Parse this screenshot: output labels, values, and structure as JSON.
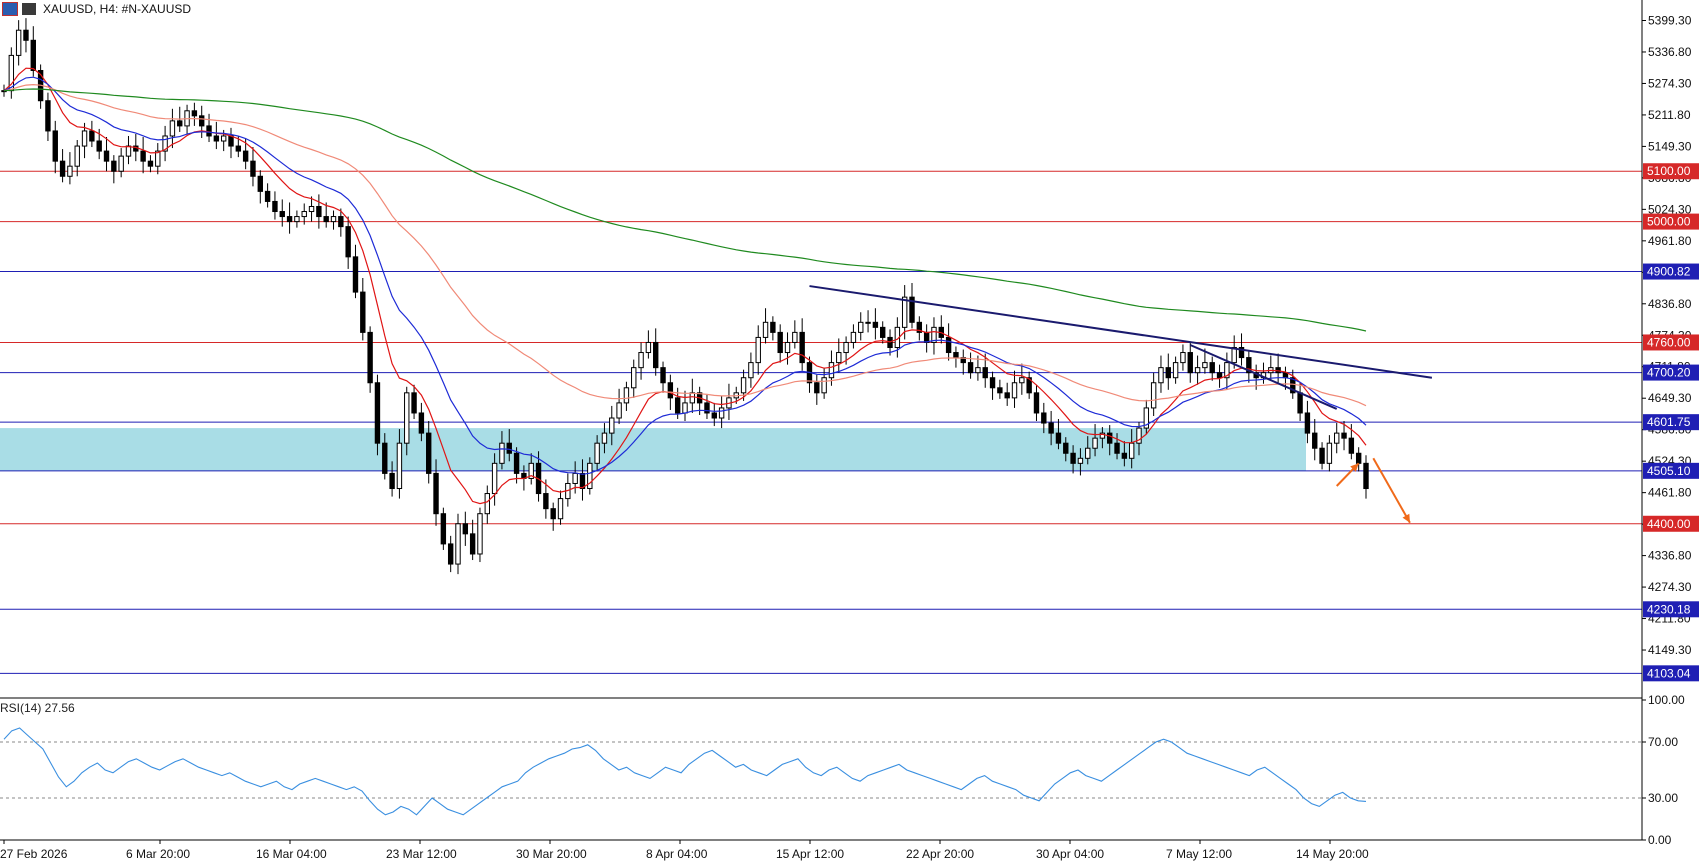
{
  "header": {
    "symbol_text": "XAUUSD, H4:  #N-XAUUSD",
    "icons": [
      "chart-bars-icon",
      "candles-icon"
    ]
  },
  "indicator": {
    "label": "RSI(14) 27.56",
    "levels": [
      70,
      30
    ]
  },
  "colors": {
    "candle": "#000000",
    "red_level": "#d62828",
    "blue_level": "#1f1fb4",
    "zone": "#a9dde6",
    "ema_fast": "#e01515",
    "ema_mid": "#1e2bd6",
    "ema_slow_pink": "#f08a78",
    "ema_long_green": "#1f8a1f",
    "trendline": "#1a1a6e",
    "arrow": "#f06a1a",
    "rsi_line": "#3a8fe0"
  },
  "chart_data": [
    {
      "type": "candlestick",
      "title": "XAUUSD, H4:  #N-XAUUSD",
      "ylim": [
        4060,
        5440
      ],
      "y_ticks": [
        "5399.30",
        "5336.80",
        "5274.30",
        "5211.80",
        "5149.30",
        "5086.80",
        "5024.30",
        "4961.80",
        "4899.30",
        "4836.80",
        "4774.30",
        "4711.80",
        "4649.30",
        "4586.80",
        "4524.30",
        "4461.80",
        "4399.30",
        "4336.80",
        "4274.30",
        "4211.80",
        "4149.30"
      ],
      "x_ticks": [
        "27 Feb 2026",
        "6 Mar 20:00",
        "16 Mar 04:00",
        "23 Mar 12:00",
        "30 Mar 20:00",
        "8 Apr 04:00",
        "15 Apr 12:00",
        "22 Apr 20:00",
        "30 Apr 04:00",
        "7 May 12:00",
        "14 May 20:00"
      ],
      "levels": [
        {
          "value": 5100.0,
          "label": "5100.00",
          "color": "red"
        },
        {
          "value": 5000.0,
          "label": "5000.00",
          "color": "red"
        },
        {
          "value": 4900.82,
          "label": "4900.82",
          "color": "blue"
        },
        {
          "value": 4760.0,
          "label": "4760.00",
          "color": "red"
        },
        {
          "value": 4700.2,
          "label": "4700.20",
          "color": "blue"
        },
        {
          "value": 4601.75,
          "label": "4601.75",
          "color": "blue"
        },
        {
          "value": 4505.1,
          "label": "4505.10",
          "color": "blue"
        },
        {
          "value": 4400.0,
          "label": "4400.00",
          "color": "red"
        },
        {
          "value": 4230.18,
          "label": "4230.18",
          "color": "blue"
        },
        {
          "value": 4103.04,
          "label": "4103.04",
          "color": "blue"
        }
      ],
      "zone": [
        4505.1,
        4590
      ],
      "closes": [
        5260,
        5330,
        5380,
        5360,
        5300,
        5240,
        5180,
        5120,
        5090,
        5110,
        5150,
        5180,
        5160,
        5140,
        5120,
        5100,
        5130,
        5150,
        5140,
        5120,
        5110,
        5140,
        5170,
        5200,
        5190,
        5220,
        5210,
        5190,
        5170,
        5160,
        5170,
        5150,
        5140,
        5120,
        5090,
        5060,
        5040,
        5020,
        5010,
        5000,
        5010,
        5020,
        5030,
        5010,
        5000,
        5010,
        4990,
        4930,
        4860,
        4780,
        4680,
        4560,
        4500,
        4470,
        4560,
        4660,
        4620,
        4580,
        4500,
        4420,
        4360,
        4320,
        4400,
        4380,
        4340,
        4420,
        4460,
        4520,
        4560,
        4540,
        4500,
        4490,
        4520,
        4460,
        4430,
        4410,
        4450,
        4480,
        4500,
        4470,
        4520,
        4560,
        4580,
        4610,
        4640,
        4670,
        4710,
        4740,
        4760,
        4710,
        4680,
        4650,
        4620,
        4640,
        4660,
        4640,
        4620,
        4610,
        4630,
        4650,
        4660,
        4690,
        4720,
        4770,
        4800,
        4780,
        4740,
        4760,
        4780,
        4720,
        4680,
        4660,
        4690,
        4720,
        4740,
        4760,
        4780,
        4800,
        4800,
        4790,
        4770,
        4750,
        4790,
        4850,
        4800,
        4780,
        4760,
        4790,
        4770,
        4740,
        4730,
        4720,
        4700,
        4710,
        4690,
        4670,
        4660,
        4650,
        4680,
        4690,
        4660,
        4620,
        4600,
        4580,
        4560,
        4540,
        4520,
        4530,
        4550,
        4570,
        4580,
        4560,
        4540,
        4530,
        4560,
        4590,
        4630,
        4680,
        4710,
        4690,
        4720,
        4740,
        4700,
        4710,
        4720,
        4700,
        4690,
        4720,
        4750,
        4730,
        4700,
        4690,
        4700,
        4710,
        4700,
        4690,
        4660,
        4620,
        4580,
        4550,
        4520,
        4560,
        4580,
        4570,
        4540,
        4520,
        4470
      ],
      "ema_periods": [
        10,
        20,
        50,
        200
      ],
      "trendlines": [
        {
          "from": [
            110,
            4872
          ],
          "to": [
            195,
            4690
          ]
        },
        {
          "from": [
            162,
            4755
          ],
          "to": [
            182,
            4628
          ]
        }
      ],
      "arrows": [
        {
          "from": [
            182,
            4475
          ],
          "to": [
            185,
            4520
          ]
        },
        {
          "from": [
            187,
            4530
          ],
          "to": [
            192,
            4402
          ]
        }
      ]
    },
    {
      "type": "line",
      "title": "RSI(14) 27.56",
      "ylim": [
        0,
        100
      ],
      "y_ticks": [
        "100.00",
        "70.00",
        "30.00",
        "0.00"
      ],
      "series": [
        {
          "values": [
            72,
            78,
            80,
            75,
            70,
            65,
            55,
            45,
            38,
            42,
            48,
            52,
            55,
            50,
            48,
            52,
            56,
            58,
            55,
            52,
            50,
            53,
            56,
            58,
            55,
            52,
            50,
            48,
            46,
            48,
            45,
            42,
            40,
            38,
            40,
            42,
            38,
            36,
            40,
            42,
            44,
            42,
            40,
            38,
            36,
            38,
            35,
            28,
            22,
            18,
            20,
            24,
            22,
            18,
            24,
            30,
            26,
            22,
            20,
            18,
            22,
            26,
            30,
            34,
            38,
            40,
            42,
            48,
            52,
            55,
            58,
            60,
            62,
            65,
            66,
            68,
            64,
            58,
            54,
            50,
            52,
            48,
            46,
            44,
            48,
            52,
            50,
            48,
            54,
            58,
            62,
            64,
            60,
            56,
            52,
            54,
            50,
            48,
            46,
            50,
            54,
            56,
            58,
            52,
            48,
            46,
            50,
            52,
            48,
            44,
            42,
            46,
            48,
            50,
            52,
            54,
            50,
            48,
            46,
            44,
            42,
            40,
            38,
            36,
            40,
            44,
            46,
            42,
            40,
            38,
            36,
            32,
            30,
            28,
            34,
            40,
            44,
            48,
            50,
            46,
            44,
            42,
            46,
            50,
            54,
            58,
            62,
            66,
            70,
            72,
            70,
            66,
            62,
            60,
            58,
            56,
            54,
            52,
            50,
            48,
            46,
            50,
            52,
            48,
            44,
            40,
            36,
            30,
            26,
            24,
            28,
            32,
            34,
            30,
            28,
            27.56
          ]
        }
      ]
    }
  ]
}
